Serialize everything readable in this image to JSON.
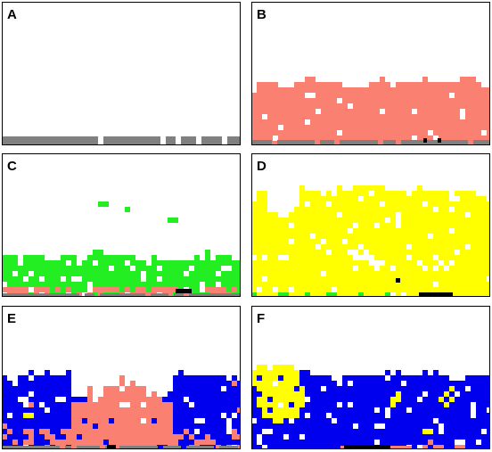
{
  "panels": [
    {
      "id": "A",
      "label": "A"
    },
    {
      "id": "B",
      "label": "B"
    },
    {
      "id": "C",
      "label": "C"
    },
    {
      "id": "D",
      "label": "D"
    },
    {
      "id": "E",
      "label": "E"
    },
    {
      "id": "F",
      "label": "F"
    }
  ],
  "colors": {
    "gray": "#808080",
    "salmon": "#fa8072",
    "green": "#22ee22",
    "yellow": "#ffff00",
    "blue": "#0000ee",
    "black": "#000000",
    "frame": "#000000",
    "background": "#ffffff"
  }
}
